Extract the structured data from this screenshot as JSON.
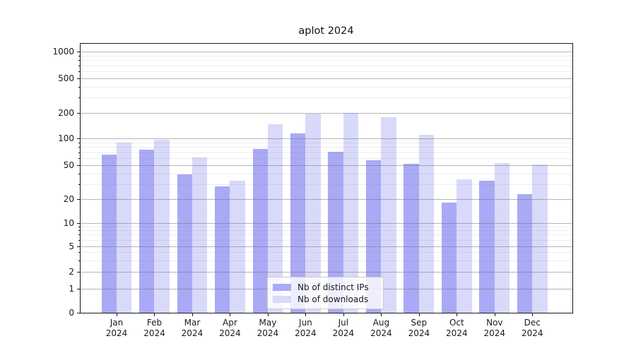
{
  "chart_data": {
    "type": "bar",
    "title": "aplot 2024",
    "categories": [
      "Jan 2024",
      "Feb 2024",
      "Mar 2024",
      "Apr 2024",
      "May 2024",
      "Jun 2024",
      "Jul 2024",
      "Aug 2024",
      "Sep 2024",
      "Oct 2024",
      "Nov 2024",
      "Dec 2024"
    ],
    "series": [
      {
        "name": "Nb of distinct IPs",
        "color": "#a9a9f6",
        "values": [
          66,
          75,
          39,
          28,
          76,
          114,
          71,
          57,
          52,
          18,
          33,
          23
        ]
      },
      {
        "name": "Nb of downloads",
        "color": "#d9d9fa",
        "values": [
          90,
          97,
          61,
          33,
          145,
          193,
          200,
          177,
          109,
          34,
          53,
          51
        ]
      }
    ],
    "xlabel": "",
    "ylabel": "",
    "yscale": "symlog-like (quasi-log with linear region near 0)",
    "ylim": [
      0,
      1300
    ],
    "yticks": [
      0,
      1,
      2,
      5,
      10,
      20,
      50,
      100,
      200,
      500,
      1000
    ],
    "yticks_minor": [
      3,
      4,
      6,
      7,
      8,
      9,
      30,
      40,
      60,
      70,
      80,
      90,
      300,
      400,
      600,
      700,
      800,
      900
    ],
    "grid": true,
    "legend_position": "lower center",
    "style": {
      "grid_major_color": "#b6b6b6",
      "grid_minor_color": "#ececec",
      "spine_color": "#1a1a1a",
      "background": "#ffffff"
    }
  }
}
